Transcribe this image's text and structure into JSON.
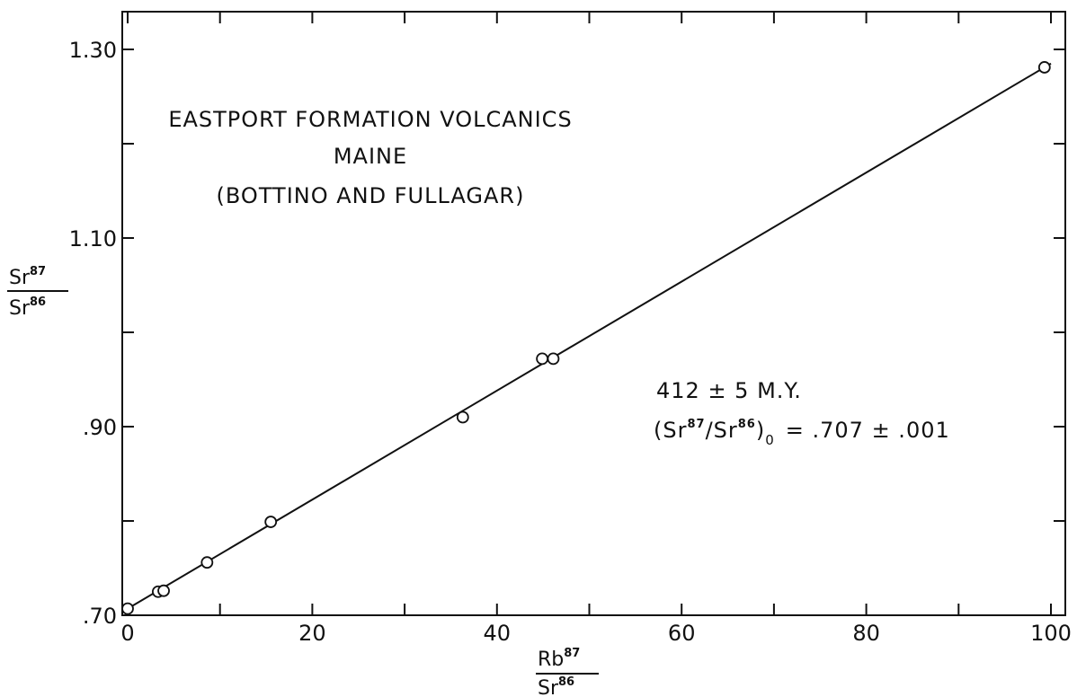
{
  "chart_data": {
    "type": "scatter",
    "title_lines": [
      "EASTPORT FORMATION VOLCANICS",
      "MAINE",
      "(BOTTINO AND FULLAGAR)"
    ],
    "xlabel": {
      "num_base": "Rb",
      "num_sup": "87",
      "den_base": "Sr",
      "den_sup": "86"
    },
    "ylabel": {
      "num_base": "Sr",
      "num_sup": "87",
      "den_base": "Sr",
      "den_sup": "86"
    },
    "xlim": [
      0,
      100
    ],
    "ylim": [
      0.7,
      1.3
    ],
    "x_ticks": [
      0,
      20,
      40,
      60,
      80,
      100
    ],
    "x_tick_labels": [
      "0",
      "20",
      "40",
      "60",
      "80",
      "100"
    ],
    "y_ticks": [
      0.7,
      0.9,
      1.1,
      1.3
    ],
    "y_tick_labels": [
      ".70",
      ".90",
      "1.10",
      "1.30"
    ],
    "x_minor_step": 10,
    "y_minor_step": 0.1,
    "grid": false,
    "points": [
      {
        "x": 0.0,
        "y": 0.707
      },
      {
        "x": 3.3,
        "y": 0.725
      },
      {
        "x": 3.9,
        "y": 0.726
      },
      {
        "x": 8.6,
        "y": 0.756
      },
      {
        "x": 15.5,
        "y": 0.799
      },
      {
        "x": 36.3,
        "y": 0.91
      },
      {
        "x": 44.9,
        "y": 0.972
      },
      {
        "x": 46.1,
        "y": 0.972
      },
      {
        "x": 99.3,
        "y": 1.281
      }
    ],
    "fit_line": {
      "x": [
        0,
        100
      ],
      "y": [
        0.707,
        1.285
      ]
    },
    "annotation": {
      "age": "412 ± 5 M.Y.",
      "ratio_open": "(Sr",
      "ratio_sup1": "87",
      "ratio_mid": "/Sr",
      "ratio_sup2": "86",
      "ratio_close": ")",
      "ratio_sub": "0",
      "ratio_value": "= .707 ± .001"
    }
  }
}
